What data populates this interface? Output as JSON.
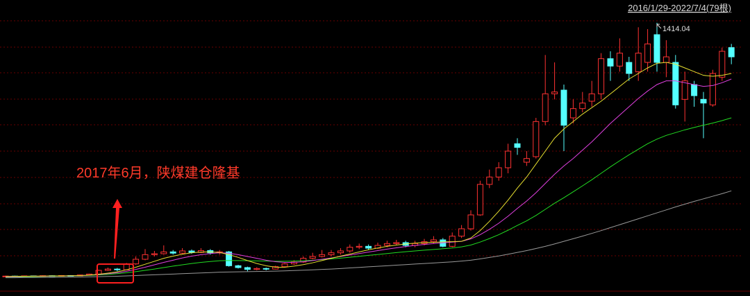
{
  "chart_data": {
    "type": "candlestick",
    "range_label": "2016/1/29-2022/7/4(79根)",
    "max_label": "1414.04",
    "annotation": "2017年6月，陕煤建仓隆基",
    "ylim": [
      0,
      1500
    ],
    "up_color": "#ff3232",
    "down_color": "#54ffff",
    "open": [
      40,
      44,
      42,
      45,
      43,
      46,
      44,
      47,
      45,
      50,
      55,
      75,
      82,
      78,
      110,
      135,
      160,
      165,
      175,
      168,
      180,
      172,
      182,
      170,
      175,
      100,
      90,
      80,
      85,
      82,
      95,
      110,
      120,
      140,
      150,
      160,
      170,
      180,
      200,
      205,
      195,
      210,
      220,
      225,
      210,
      220,
      230,
      240,
      205,
      260,
      300,
      375,
      540,
      580,
      630,
      760,
      660,
      690,
      880,
      1030,
      1050,
      900,
      950,
      990,
      1030,
      1220,
      1180,
      1200,
      1150,
      1200,
      1350,
      1200,
      1200,
      1000,
      1080,
      1000,
      970,
      1120,
      1280
    ],
    "close": [
      44,
      42,
      45,
      43,
      46,
      44,
      47,
      45,
      50,
      55,
      75,
      82,
      78,
      110,
      135,
      160,
      165,
      175,
      168,
      180,
      172,
      182,
      170,
      175,
      100,
      90,
      80,
      85,
      82,
      95,
      110,
      120,
      140,
      150,
      160,
      170,
      180,
      200,
      205,
      195,
      210,
      220,
      225,
      210,
      220,
      230,
      240,
      205,
      260,
      300,
      375,
      540,
      580,
      630,
      720,
      740,
      680,
      880,
      1030,
      1040,
      860,
      950,
      980,
      1030,
      1220,
      1180,
      1250,
      1140,
      1250,
      1300,
      1200,
      1230,
      970,
      1100,
      1020,
      980,
      1140,
      1260,
      1230
    ],
    "high": [
      46,
      46,
      47,
      47,
      48,
      48,
      49,
      49,
      52,
      57,
      78,
      90,
      88,
      115,
      150,
      190,
      180,
      210,
      185,
      195,
      188,
      195,
      190,
      185,
      180,
      105,
      95,
      92,
      90,
      100,
      115,
      130,
      150,
      170,
      185,
      185,
      195,
      215,
      220,
      215,
      225,
      235,
      240,
      235,
      235,
      245,
      260,
      250,
      280,
      320,
      400,
      560,
      620,
      660,
      760,
      790,
      720,
      900,
      1240,
      1200,
      1080,
      1000,
      1040,
      1100,
      1250,
      1260,
      1330,
      1230,
      1390,
      1380,
      1414.04,
      1320,
      1240,
      1150,
      1100,
      1040,
      1160,
      1280,
      1300
    ],
    "low": [
      38,
      40,
      41,
      41,
      42,
      43,
      43,
      44,
      44,
      48,
      53,
      72,
      70,
      76,
      105,
      130,
      150,
      160,
      160,
      162,
      165,
      168,
      160,
      160,
      95,
      85,
      70,
      75,
      75,
      80,
      90,
      105,
      115,
      135,
      145,
      150,
      160,
      170,
      190,
      185,
      190,
      200,
      210,
      200,
      200,
      210,
      220,
      200,
      200,
      250,
      290,
      370,
      520,
      560,
      600,
      700,
      640,
      680,
      860,
      1000,
      720,
      870,
      930,
      960,
      1000,
      1100,
      1150,
      1100,
      1100,
      1150,
      1150,
      1120,
      950,
      880,
      960,
      790,
      960,
      1100,
      1190
    ],
    "series": [
      {
        "color": "#9a9a9a",
        "values": [
          35,
          35,
          36,
          36,
          37,
          37,
          38,
          38,
          39,
          40,
          41,
          42,
          43,
          45,
          47,
          49,
          51,
          53,
          55,
          57,
          59,
          61,
          63,
          65,
          66,
          67,
          68,
          69,
          70,
          71,
          72,
          74,
          76,
          78,
          80,
          82,
          85,
          88,
          91,
          94,
          97,
          100,
          103,
          106,
          109,
          112,
          115,
          118,
          121,
          125,
          130,
          137,
          145,
          153,
          162,
          172,
          182,
          193,
          205,
          218,
          232,
          246,
          260,
          275,
          290,
          306,
          322,
          338,
          354,
          370,
          386,
          402,
          418,
          433,
          448,
          462,
          476,
          490,
          505
        ]
      },
      {
        "color": "#22dd22",
        "values": [
          38,
          39,
          40,
          41,
          42,
          43,
          44,
          45,
          46,
          48,
          50,
          53,
          57,
          62,
          68,
          75,
          82,
          90,
          98,
          105,
          112,
          118,
          123,
          127,
          128,
          128,
          127,
          126,
          125,
          124,
          124,
          125,
          127,
          130,
          133,
          137,
          141,
          146,
          151,
          156,
          161,
          166,
          171,
          176,
          180,
          184,
          188,
          192,
          196,
          202,
          212,
          228,
          247,
          268,
          292,
          318,
          343,
          372,
          405,
          438,
          468,
          500,
          532,
          565,
          600,
          635,
          668,
          700,
          730,
          760,
          785,
          805,
          820,
          835,
          848,
          860,
          872,
          885,
          900
        ]
      },
      {
        "color": "#e040e0",
        "values": [
          40,
          41,
          42,
          43,
          43,
          44,
          45,
          46,
          47,
          49,
          52,
          57,
          62,
          70,
          80,
          92,
          105,
          118,
          130,
          142,
          152,
          160,
          166,
          170,
          168,
          160,
          150,
          140,
          130,
          122,
          118,
          118,
          122,
          128,
          135,
          142,
          150,
          158,
          166,
          174,
          182,
          190,
          197,
          204,
          210,
          215,
          220,
          224,
          228,
          232,
          245,
          268,
          297,
          330,
          368,
          410,
          450,
          495,
          545,
          595,
          640,
          680,
          725,
          770,
          820,
          870,
          915,
          960,
          1005,
          1045,
          1080,
          1100,
          1100,
          1090,
          1080,
          1070,
          1075,
          1090,
          1110
        ]
      },
      {
        "color": "#e8e030",
        "values": [
          42,
          43,
          43,
          44,
          44,
          45,
          45,
          46,
          47,
          49,
          54,
          60,
          67,
          78,
          92,
          108,
          124,
          140,
          152,
          162,
          170,
          174,
          175,
          172,
          160,
          145,
          128,
          112,
          100,
          92,
          92,
          98,
          106,
          116,
          128,
          140,
          152,
          163,
          175,
          186,
          196,
          205,
          212,
          218,
          222,
          225,
          227,
          229,
          230,
          232,
          250,
          290,
          340,
          395,
          455,
          520,
          580,
          650,
          720,
          790,
          840,
          880,
          920,
          955,
          990,
          1030,
          1070,
          1110,
          1140,
          1170,
          1195,
          1200,
          1190,
          1170,
          1150,
          1130,
          1125,
          1130,
          1140
        ]
      }
    ]
  }
}
